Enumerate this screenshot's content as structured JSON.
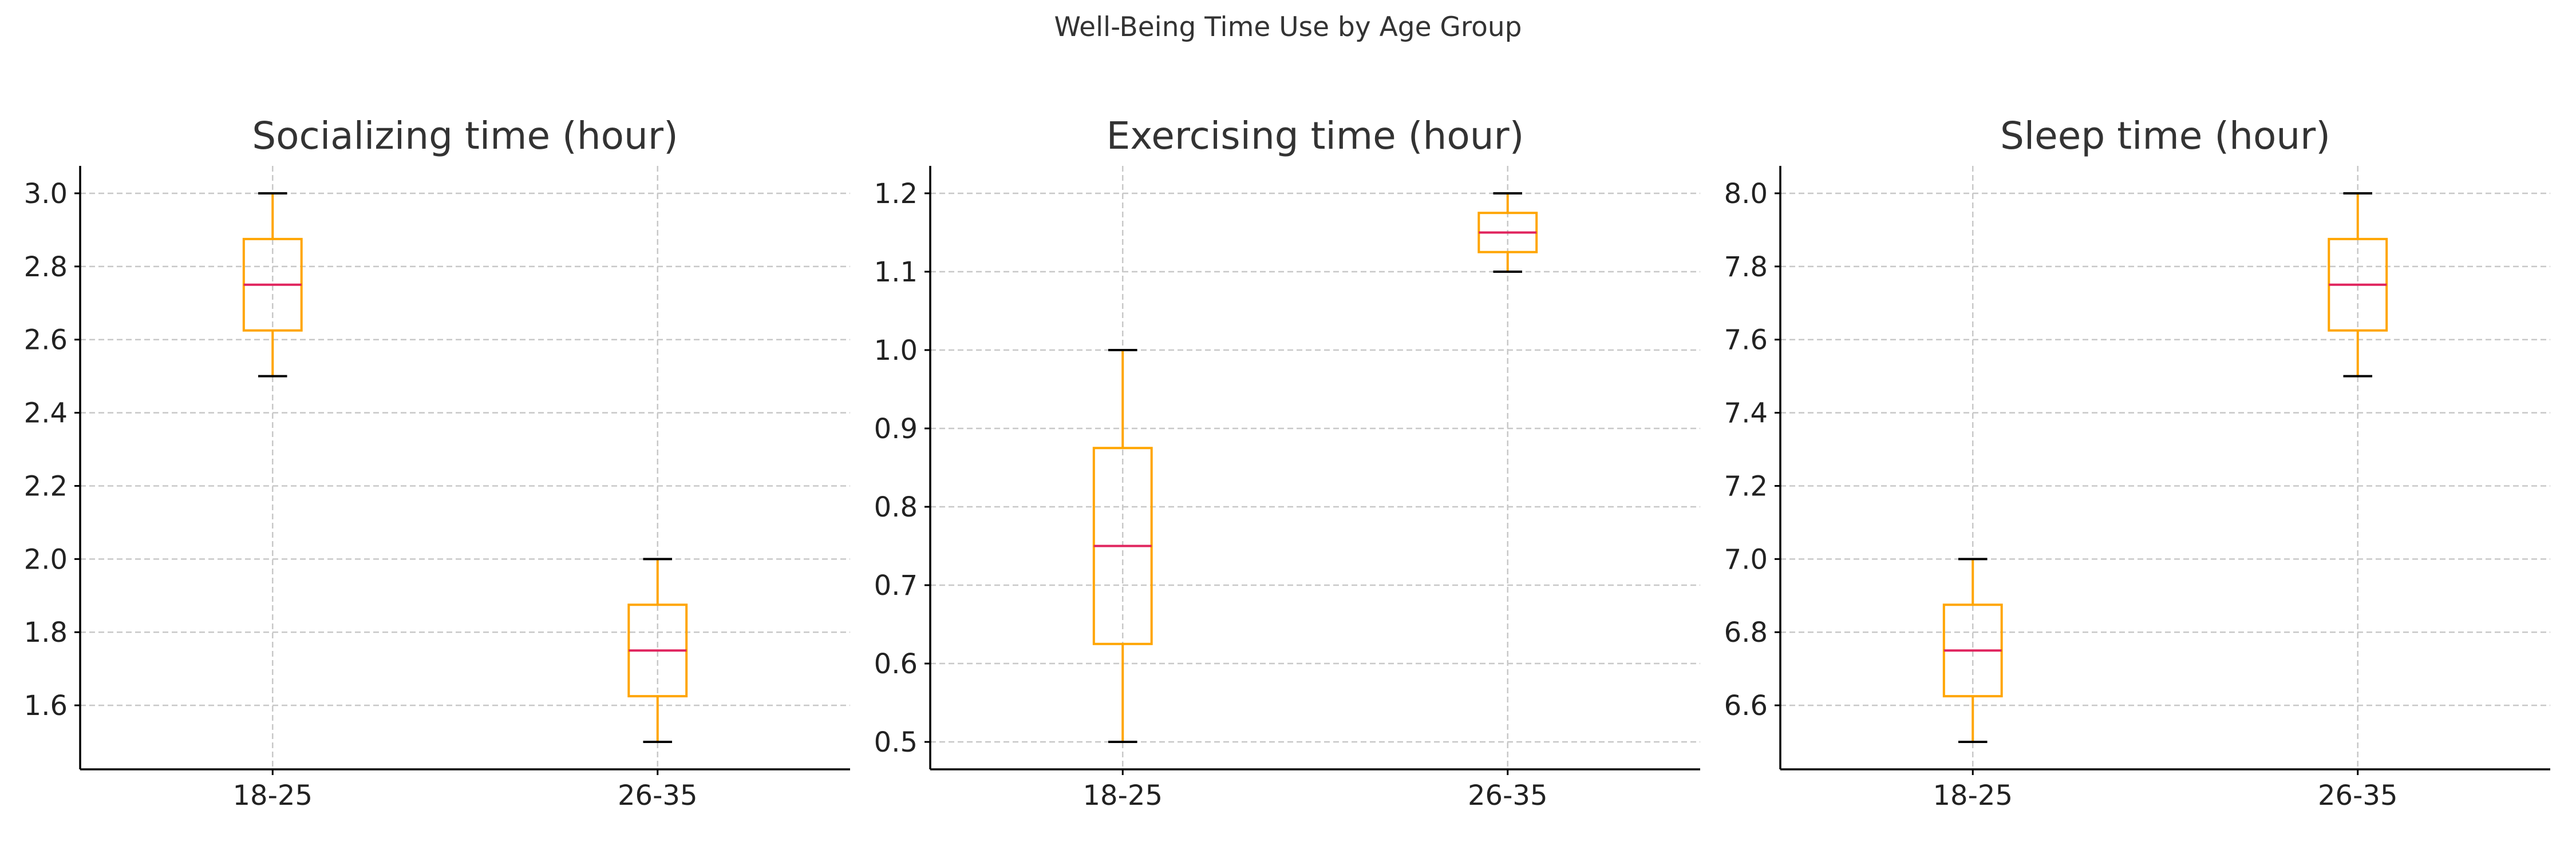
{
  "figure": {
    "title": "Well-Being Time Use by Age Group"
  },
  "chart_data": [
    {
      "type": "box",
      "title": "Socializing time (hour)",
      "xlabel": "",
      "ylabel": "",
      "categories": [
        "18-25",
        "26-35"
      ],
      "boxes": [
        {
          "category": "18-25",
          "min": 2.5,
          "q1": 2.625,
          "median": 2.75,
          "q3": 2.875,
          "max": 3.0
        },
        {
          "category": "26-35",
          "min": 1.5,
          "q1": 1.625,
          "median": 1.75,
          "q3": 1.875,
          "max": 2.0
        }
      ],
      "ylim": [
        1.425,
        3.075
      ],
      "yticks": [
        1.6,
        1.8,
        2.0,
        2.2,
        2.4,
        2.6,
        2.8,
        3.0
      ],
      "ytick_labels": [
        "1.6",
        "1.8",
        "2.0",
        "2.2",
        "2.4",
        "2.6",
        "2.8",
        "3.0"
      ],
      "grid": true,
      "colors": {
        "box": "#FFA500",
        "median": "#E0245E",
        "cap": "#000000",
        "grid": "#c8c8c8",
        "axis": "#000000"
      }
    },
    {
      "type": "box",
      "title": "Exercising time (hour)",
      "xlabel": "",
      "ylabel": "",
      "categories": [
        "18-25",
        "26-35"
      ],
      "boxes": [
        {
          "category": "18-25",
          "min": 0.5,
          "q1": 0.625,
          "median": 0.75,
          "q3": 0.875,
          "max": 1.0
        },
        {
          "category": "26-35",
          "min": 1.1,
          "q1": 1.125,
          "median": 1.15,
          "q3": 1.175,
          "max": 1.2
        }
      ],
      "ylim": [
        0.465,
        1.235
      ],
      "yticks": [
        0.5,
        0.6,
        0.7,
        0.8,
        0.9,
        1.0,
        1.1,
        1.2
      ],
      "ytick_labels": [
        "0.5",
        "0.6",
        "0.7",
        "0.8",
        "0.9",
        "1.0",
        "1.1",
        "1.2"
      ],
      "grid": true,
      "colors": {
        "box": "#FFA500",
        "median": "#E0245E",
        "cap": "#000000",
        "grid": "#c8c8c8",
        "axis": "#000000"
      }
    },
    {
      "type": "box",
      "title": "Sleep time (hour)",
      "xlabel": "",
      "ylabel": "",
      "categories": [
        "18-25",
        "26-35"
      ],
      "boxes": [
        {
          "category": "18-25",
          "min": 6.5,
          "q1": 6.625,
          "median": 6.75,
          "q3": 6.875,
          "max": 7.0
        },
        {
          "category": "26-35",
          "min": 7.5,
          "q1": 7.625,
          "median": 7.75,
          "q3": 7.875,
          "max": 8.0
        }
      ],
      "ylim": [
        6.425,
        8.075
      ],
      "yticks": [
        6.6,
        6.8,
        7.0,
        7.2,
        7.4,
        7.6,
        7.8,
        8.0
      ],
      "ytick_labels": [
        "6.6",
        "6.8",
        "7.0",
        "7.2",
        "7.4",
        "7.6",
        "7.8",
        "8.0"
      ],
      "grid": true,
      "colors": {
        "box": "#FFA500",
        "median": "#E0245E",
        "cap": "#000000",
        "grid": "#c8c8c8",
        "axis": "#000000"
      }
    }
  ]
}
